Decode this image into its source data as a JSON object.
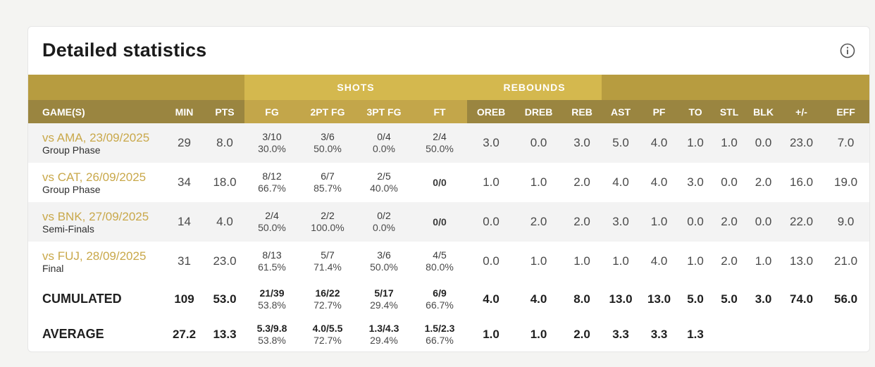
{
  "title": "Detailed statistics",
  "groups": {
    "shots": "SHOTS",
    "rebounds": "REBOUNDS"
  },
  "columns": {
    "games": "GAME(S)",
    "min": "MIN",
    "pts": "PTS",
    "fg": "FG",
    "fg2": "2PT FG",
    "fg3": "3PT FG",
    "ft": "FT",
    "oreb": "OREB",
    "dreb": "DREB",
    "reb": "REB",
    "ast": "AST",
    "pf": "PF",
    "to": "TO",
    "stl": "STL",
    "blk": "BLK",
    "pm": "+/-",
    "eff": "EFF"
  },
  "rows": [
    {
      "game": "vs AMA, 23/09/2025",
      "phase": "Group Phase",
      "min": "29",
      "pts": "8.0",
      "fg": [
        "3/10",
        "30.0%"
      ],
      "fg2": [
        "3/6",
        "50.0%"
      ],
      "fg3": [
        "0/4",
        "0.0%"
      ],
      "ft": [
        "2/4",
        "50.0%"
      ],
      "oreb": "3.0",
      "dreb": "0.0",
      "reb": "3.0",
      "ast": "5.0",
      "pf": "4.0",
      "to": "1.0",
      "stl": "1.0",
      "blk": "0.0",
      "pm": "23.0",
      "eff": "7.0"
    },
    {
      "game": "vs CAT, 26/09/2025",
      "phase": "Group Phase",
      "min": "34",
      "pts": "18.0",
      "fg": [
        "8/12",
        "66.7%"
      ],
      "fg2": [
        "6/7",
        "85.7%"
      ],
      "fg3": [
        "2/5",
        "40.0%"
      ],
      "ft": [
        "0/0",
        ""
      ],
      "oreb": "1.0",
      "dreb": "1.0",
      "reb": "2.0",
      "ast": "4.0",
      "pf": "4.0",
      "to": "3.0",
      "stl": "0.0",
      "blk": "2.0",
      "pm": "16.0",
      "eff": "19.0"
    },
    {
      "game": "vs BNK, 27/09/2025",
      "phase": "Semi-Finals",
      "min": "14",
      "pts": "4.0",
      "fg": [
        "2/4",
        "50.0%"
      ],
      "fg2": [
        "2/2",
        "100.0%"
      ],
      "fg3": [
        "0/2",
        "0.0%"
      ],
      "ft": [
        "0/0",
        ""
      ],
      "oreb": "0.0",
      "dreb": "2.0",
      "reb": "2.0",
      "ast": "3.0",
      "pf": "1.0",
      "to": "0.0",
      "stl": "2.0",
      "blk": "0.0",
      "pm": "22.0",
      "eff": "9.0"
    },
    {
      "game": "vs FUJ, 28/09/2025",
      "phase": "Final",
      "min": "31",
      "pts": "23.0",
      "fg": [
        "8/13",
        "61.5%"
      ],
      "fg2": [
        "5/7",
        "71.4%"
      ],
      "fg3": [
        "3/6",
        "50.0%"
      ],
      "ft": [
        "4/5",
        "80.0%"
      ],
      "oreb": "0.0",
      "dreb": "1.0",
      "reb": "1.0",
      "ast": "1.0",
      "pf": "4.0",
      "to": "1.0",
      "stl": "2.0",
      "blk": "1.0",
      "pm": "13.0",
      "eff": "21.0"
    }
  ],
  "cumulated": {
    "label": "CUMULATED",
    "min": "109",
    "pts": "53.0",
    "fg": [
      "21/39",
      "53.8%"
    ],
    "fg2": [
      "16/22",
      "72.7%"
    ],
    "fg3": [
      "5/17",
      "29.4%"
    ],
    "ft": [
      "6/9",
      "66.7%"
    ],
    "oreb": "4.0",
    "dreb": "4.0",
    "reb": "8.0",
    "ast": "13.0",
    "pf": "13.0",
    "to": "5.0",
    "stl": "5.0",
    "blk": "3.0",
    "pm": "74.0",
    "eff": "56.0"
  },
  "average": {
    "label": "AVERAGE",
    "min": "27.2",
    "pts": "13.3",
    "fg": [
      "5.3/9.8",
      "53.8%"
    ],
    "fg2": [
      "4.0/5.5",
      "72.7%"
    ],
    "fg3": [
      "1.3/4.3",
      "29.4%"
    ],
    "ft": [
      "1.5/2.3",
      "66.7%"
    ],
    "oreb": "1.0",
    "dreb": "1.0",
    "reb": "2.0",
    "ast": "3.3",
    "pf": "3.3",
    "to": "1.3",
    "stl": "",
    "blk": "",
    "pm": "",
    "eff": ""
  },
  "colors": {
    "header_light": "#d4b84e",
    "header_dark": "#9a8540",
    "link": "#c9a84a",
    "row_alt": "#f3f3f3"
  },
  "icons": {
    "info": "info-icon"
  }
}
